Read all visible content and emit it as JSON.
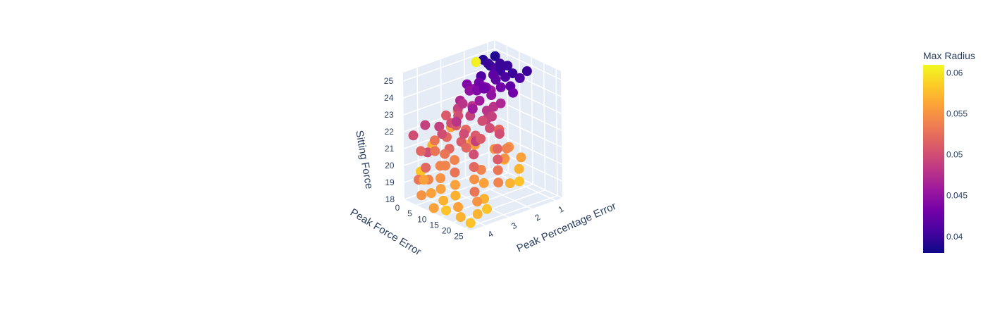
{
  "chart_data": {
    "type": "scatter3d",
    "axes": {
      "x": {
        "title": "Peak Force Error",
        "ticks": [
          "0",
          "5",
          "10",
          "15",
          "20",
          "25"
        ],
        "range": [
          0,
          27
        ]
      },
      "y": {
        "title": "Peak Percentage Error",
        "ticks": [
          "1",
          "2",
          "3",
          "4"
        ],
        "range": [
          0.7,
          4.6
        ]
      },
      "z": {
        "title": "Sitting Force",
        "ticks": [
          "18",
          "19",
          "20",
          "21",
          "22",
          "23",
          "24",
          "25"
        ],
        "range": [
          18,
          25.5
        ]
      }
    },
    "colorbar": {
      "title": "Max Radius",
      "ticks": [
        "0.04",
        "0.045",
        "0.05",
        "0.055",
        "0.06"
      ],
      "range": [
        0.038,
        0.061
      ],
      "colors": [
        "#0d0887",
        "#46039f",
        "#7201a8",
        "#9c179e",
        "#bd3786",
        "#d8576b",
        "#ed7953",
        "#fb9f3a",
        "#fdca26",
        "#f0f921"
      ]
    },
    "points": [
      {
        "x": 3,
        "y": 1.0,
        "z": 24.9,
        "c": 0.039
      },
      {
        "x": 2,
        "y": 1.2,
        "z": 24.5,
        "c": 0.04
      },
      {
        "x": 4,
        "y": 1.1,
        "z": 24.3,
        "c": 0.041
      },
      {
        "x": 1,
        "y": 1.3,
        "z": 24.7,
        "c": 0.039
      },
      {
        "x": 5,
        "y": 1.0,
        "z": 24.6,
        "c": 0.04
      },
      {
        "x": 6,
        "y": 1.4,
        "z": 24.2,
        "c": 0.042
      },
      {
        "x": 3,
        "y": 1.6,
        "z": 24.0,
        "c": 0.041
      },
      {
        "x": 7,
        "y": 1.2,
        "z": 24.4,
        "c": 0.04
      },
      {
        "x": 2,
        "y": 1.5,
        "z": 23.9,
        "c": 0.043
      },
      {
        "x": 8,
        "y": 1.5,
        "z": 24.1,
        "c": 0.042
      },
      {
        "x": 4,
        "y": 1.8,
        "z": 23.8,
        "c": 0.043
      },
      {
        "x": 9,
        "y": 1.1,
        "z": 24.8,
        "c": 0.04
      },
      {
        "x": 1,
        "y": 1.0,
        "z": 24.2,
        "c": 0.039
      },
      {
        "x": 6,
        "y": 1.7,
        "z": 23.6,
        "c": 0.044
      },
      {
        "x": 10,
        "y": 1.3,
        "z": 24.3,
        "c": 0.041
      },
      {
        "x": 5,
        "y": 2.0,
        "z": 23.5,
        "c": 0.044
      },
      {
        "x": 11,
        "y": 1.6,
        "z": 23.9,
        "c": 0.043
      },
      {
        "x": 3,
        "y": 2.1,
        "z": 23.4,
        "c": 0.045
      },
      {
        "x": 12,
        "y": 1.2,
        "z": 24.6,
        "c": 0.04
      },
      {
        "x": 7,
        "y": 1.9,
        "z": 23.7,
        "c": 0.043
      },
      {
        "x": 2,
        "y": 1.8,
        "z": 23.3,
        "c": 0.045
      },
      {
        "x": 13,
        "y": 1.4,
        "z": 24.0,
        "c": 0.042
      },
      {
        "x": 8,
        "y": 2.2,
        "z": 23.2,
        "c": 0.046
      },
      {
        "x": 1,
        "y": 2.0,
        "z": 23.6,
        "c": 0.044
      },
      {
        "x": 4,
        "y": 1.3,
        "z": 23.1,
        "c": 0.046
      },
      {
        "x": 14,
        "y": 1.1,
        "z": 24.4,
        "c": 0.041
      },
      {
        "x": 0,
        "y": 1.2,
        "z": 23.0,
        "c": 0.047
      },
      {
        "x": 9,
        "y": 1.8,
        "z": 23.4,
        "c": 0.045
      },
      {
        "x": 15,
        "y": 1.5,
        "z": 23.8,
        "c": 0.043
      },
      {
        "x": 16,
        "y": 1.0,
        "z": 24.9,
        "c": 0.04
      },
      {
        "x": 2,
        "y": 2.4,
        "z": 22.9,
        "c": 0.047
      },
      {
        "x": 6,
        "y": 2.3,
        "z": 22.8,
        "c": 0.048
      },
      {
        "x": 10,
        "y": 2.1,
        "z": 22.7,
        "c": 0.048
      },
      {
        "x": 0,
        "y": 1.5,
        "z": 24.6,
        "c": 0.0605
      },
      {
        "x": 3,
        "y": 2.6,
        "z": 22.6,
        "c": 0.049
      },
      {
        "x": 5,
        "y": 2.8,
        "z": 22.4,
        "c": 0.05
      },
      {
        "x": 8,
        "y": 2.6,
        "z": 22.5,
        "c": 0.049
      },
      {
        "x": 11,
        "y": 2.4,
        "z": 22.3,
        "c": 0.05
      },
      {
        "x": 1,
        "y": 2.9,
        "z": 22.2,
        "c": 0.051
      },
      {
        "x": 13,
        "y": 2.2,
        "z": 22.6,
        "c": 0.049
      },
      {
        "x": 4,
        "y": 3.0,
        "z": 22.0,
        "c": 0.05
      },
      {
        "x": 7,
        "y": 3.1,
        "z": 22.1,
        "c": 0.051
      },
      {
        "x": 15,
        "y": 2.5,
        "z": 22.2,
        "c": 0.05
      },
      {
        "x": 9,
        "y": 2.9,
        "z": 21.9,
        "c": 0.052
      },
      {
        "x": 2,
        "y": 3.3,
        "z": 21.8,
        "c": 0.049
      },
      {
        "x": 12,
        "y": 2.8,
        "z": 21.7,
        "c": 0.051
      },
      {
        "x": 17,
        "y": 2.3,
        "z": 21.9,
        "c": 0.05
      },
      {
        "x": 6,
        "y": 3.4,
        "z": 21.5,
        "c": 0.052
      },
      {
        "x": 14,
        "y": 3.0,
        "z": 21.6,
        "c": 0.049
      },
      {
        "x": 10,
        "y": 3.2,
        "z": 21.4,
        "c": 0.051
      },
      {
        "x": 19,
        "y": 2.6,
        "z": 21.3,
        "c": 0.052
      },
      {
        "x": 3,
        "y": 3.6,
        "z": 21.2,
        "c": 0.053
      },
      {
        "x": 16,
        "y": 3.3,
        "z": 21.1,
        "c": 0.05
      },
      {
        "x": 8,
        "y": 3.5,
        "z": 21.0,
        "c": 0.052
      },
      {
        "x": 21,
        "y": 2.8,
        "z": 20.9,
        "c": 0.051
      },
      {
        "x": 5,
        "y": 3.8,
        "z": 20.8,
        "c": 0.053
      },
      {
        "x": 12,
        "y": 3.7,
        "z": 20.7,
        "c": 0.054
      },
      {
        "x": 18,
        "y": 3.5,
        "z": 20.6,
        "c": 0.052
      },
      {
        "x": 23,
        "y": 3.0,
        "z": 20.5,
        "c": 0.053
      },
      {
        "x": 1,
        "y": 3.7,
        "z": 20.4,
        "c": 0.05
      },
      {
        "x": 9,
        "y": 4.0,
        "z": 20.3,
        "c": 0.054
      },
      {
        "x": 14,
        "y": 3.9,
        "z": 20.2,
        "c": 0.053
      },
      {
        "x": 20,
        "y": 3.7,
        "z": 20.1,
        "c": 0.055
      },
      {
        "x": 25,
        "y": 3.2,
        "z": 20.0,
        "c": 0.054
      },
      {
        "x": 4,
        "y": 4.1,
        "z": 19.9,
        "c": 0.052
      },
      {
        "x": 11,
        "y": 4.2,
        "z": 19.8,
        "c": 0.055
      },
      {
        "x": 16,
        "y": 4.1,
        "z": 19.7,
        "c": 0.056
      },
      {
        "x": 22,
        "y": 3.9,
        "z": 19.6,
        "c": 0.053
      },
      {
        "x": 7,
        "y": 4.3,
        "z": 19.5,
        "c": 0.054
      },
      {
        "x": 13,
        "y": 4.4,
        "z": 19.4,
        "c": 0.056
      },
      {
        "x": 18,
        "y": 4.3,
        "z": 19.3,
        "c": 0.057
      },
      {
        "x": 24,
        "y": 4.0,
        "z": 19.2,
        "c": 0.055
      },
      {
        "x": 2,
        "y": 4.2,
        "z": 19.1,
        "c": 0.053
      },
      {
        "x": 10,
        "y": 4.5,
        "z": 19.0,
        "c": 0.056
      },
      {
        "x": 15,
        "y": 4.5,
        "z": 18.9,
        "c": 0.057
      },
      {
        "x": 20,
        "y": 4.4,
        "z": 18.8,
        "c": 0.056
      },
      {
        "x": 26,
        "y": 4.2,
        "z": 18.7,
        "c": 0.057
      },
      {
        "x": 6,
        "y": 4.5,
        "z": 18.6,
        "c": 0.055
      },
      {
        "x": 17,
        "y": 4.6,
        "z": 18.5,
        "c": 0.058
      },
      {
        "x": 22,
        "y": 4.5,
        "z": 18.4,
        "c": 0.057
      },
      {
        "x": 12,
        "y": 4.6,
        "z": 18.3,
        "c": 0.056
      },
      {
        "x": 25,
        "y": 4.4,
        "z": 18.2,
        "c": 0.058
      },
      {
        "x": 0,
        "y": 3.4,
        "z": 20.6,
        "c": 0.057
      },
      {
        "x": 1,
        "y": 2.7,
        "z": 21.4,
        "c": 0.056
      },
      {
        "x": 0,
        "y": 3.9,
        "z": 19.3,
        "c": 0.058
      },
      {
        "x": 2,
        "y": 2.2,
        "z": 20.2,
        "c": 0.057
      },
      {
        "x": 0,
        "y": 2.3,
        "z": 22.1,
        "c": 0.055
      },
      {
        "x": 1,
        "y": 1.7,
        "z": 19.9,
        "c": 0.058
      },
      {
        "x": 5,
        "y": 1.6,
        "z": 21.6,
        "c": 0.049
      },
      {
        "x": 7,
        "y": 2.4,
        "z": 20.9,
        "c": 0.054
      },
      {
        "x": 9,
        "y": 1.5,
        "z": 21.2,
        "c": 0.053
      },
      {
        "x": 11,
        "y": 1.9,
        "z": 20.4,
        "c": 0.055
      },
      {
        "x": 3,
        "y": 1.9,
        "z": 20.1,
        "c": 0.056
      },
      {
        "x": 13,
        "y": 1.7,
        "z": 19.8,
        "c": 0.057
      },
      {
        "x": 6,
        "y": 1.4,
        "z": 22.3,
        "c": 0.048
      },
      {
        "x": 4,
        "y": 2.5,
        "z": 22.9,
        "c": 0.048
      },
      {
        "x": 8,
        "y": 1.3,
        "z": 22.6,
        "c": 0.047
      },
      {
        "x": 10,
        "y": 2.7,
        "z": 23.1,
        "c": 0.046
      },
      {
        "x": 14,
        "y": 2.0,
        "z": 21.8,
        "c": 0.052
      },
      {
        "x": 16,
        "y": 1.8,
        "z": 20.8,
        "c": 0.055
      },
      {
        "x": 19,
        "y": 1.6,
        "z": 20.3,
        "c": 0.056
      },
      {
        "x": 21,
        "y": 1.9,
        "z": 19.9,
        "c": 0.057
      },
      {
        "x": 23,
        "y": 2.1,
        "z": 19.4,
        "c": 0.058
      },
      {
        "x": 18,
        "y": 2.1,
        "z": 21.0,
        "c": 0.054
      },
      {
        "x": 20,
        "y": 2.4,
        "z": 20.7,
        "c": 0.055
      },
      {
        "x": 24,
        "y": 2.6,
        "z": 19.6,
        "c": 0.057
      },
      {
        "x": 15,
        "y": 3.6,
        "z": 22.4,
        "c": 0.05
      },
      {
        "x": 17,
        "y": 3.1,
        "z": 22.0,
        "c": 0.051
      },
      {
        "x": 19,
        "y": 3.3,
        "z": 20.4,
        "c": 0.054
      },
      {
        "x": 21,
        "y": 3.4,
        "z": 19.8,
        "c": 0.056
      },
      {
        "x": 23,
        "y": 3.6,
        "z": 19.1,
        "c": 0.057
      },
      {
        "x": 26,
        "y": 3.8,
        "z": 18.8,
        "c": 0.058
      },
      {
        "x": 11,
        "y": 3.5,
        "z": 22.8,
        "c": 0.048
      },
      {
        "x": 13,
        "y": 3.3,
        "z": 21.3,
        "c": 0.052
      },
      {
        "x": 7,
        "y": 3.7,
        "z": 21.9,
        "c": 0.05
      },
      {
        "x": 9,
        "y": 3.8,
        "z": 20.9,
        "c": 0.053
      },
      {
        "x": 5,
        "y": 4.4,
        "z": 21.1,
        "c": 0.052
      },
      {
        "x": 3,
        "y": 4.0,
        "z": 22.3,
        "c": 0.049
      },
      {
        "x": 1,
        "y": 4.3,
        "z": 21.7,
        "c": 0.05
      },
      {
        "x": 14,
        "y": 4.3,
        "z": 20.8,
        "c": 0.054
      },
      {
        "x": 8,
        "y": 4.6,
        "z": 19.7,
        "c": 0.056
      }
    ]
  }
}
